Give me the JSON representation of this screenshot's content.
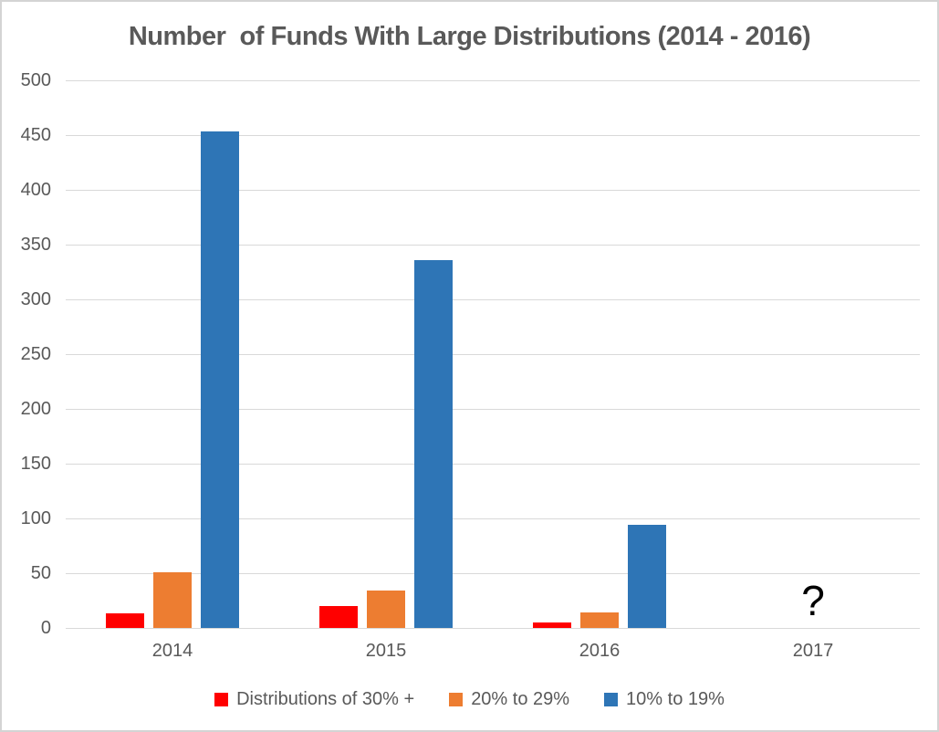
{
  "chart_data": {
    "type": "bar",
    "title": "Number  of Funds With Large Distributions (2014 - 2016)",
    "categories": [
      "2014",
      "2015",
      "2016",
      "2017"
    ],
    "series": [
      {
        "name": "Distributions of 30% +",
        "color": "#FF0000",
        "values": [
          13,
          20,
          5,
          null
        ]
      },
      {
        "name": "20% to 29%",
        "color": "#ED7D31",
        "values": [
          51,
          34,
          14,
          null
        ]
      },
      {
        "name": "10% to 19%",
        "color": "#2E75B6",
        "values": [
          453,
          336,
          94,
          null
        ]
      }
    ],
    "xlabel": "",
    "ylabel": "",
    "ylim": [
      0,
      500
    ],
    "ytick_step": 50,
    "yticks": [
      500,
      450,
      400,
      350,
      300,
      250,
      200,
      150,
      100,
      50,
      0
    ],
    "grid": true,
    "legend_position": "bottom",
    "annotation": {
      "text": "?",
      "category": "2017"
    },
    "colors": {
      "text": "#595959",
      "gridline": "#D9D9D9",
      "annotation": "#000000",
      "background": "#FFFFFF"
    }
  }
}
